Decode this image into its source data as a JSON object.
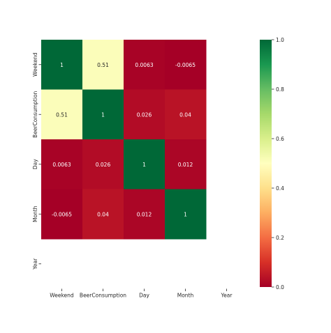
{
  "chart_data": {
    "type": "heatmap",
    "title": "",
    "xlabel": "",
    "ylabel": "",
    "rows": [
      "Weekend",
      "BeerConsumption",
      "Day",
      "Month",
      "Year"
    ],
    "columns": [
      "Weekend",
      "BeerConsumption",
      "Day",
      "Month",
      "Year"
    ],
    "values": [
      [
        1,
        0.51,
        0.0063,
        -0.0065,
        null
      ],
      [
        0.51,
        1,
        0.026,
        0.04,
        null
      ],
      [
        0.0063,
        0.026,
        1,
        0.012,
        null
      ],
      [
        -0.0065,
        0.04,
        0.012,
        1,
        null
      ],
      [
        null,
        null,
        null,
        null,
        null
      ]
    ],
    "labels": [
      [
        "1",
        "0.51",
        "0.0063",
        "-0.0065",
        ""
      ],
      [
        "0.51",
        "1",
        "0.026",
        "0.04",
        ""
      ],
      [
        "0.0063",
        "0.026",
        "1",
        "0.012",
        ""
      ],
      [
        "-0.0065",
        "0.04",
        "0.012",
        "1",
        ""
      ],
      [
        "",
        "",
        "",
        "",
        ""
      ]
    ],
    "colormap": "RdYlGn",
    "colorbar": {
      "range": [
        0.0,
        1.0
      ],
      "ticks": [
        0.0,
        0.2,
        0.4,
        0.6,
        0.8,
        1.0
      ],
      "tick_labels": [
        "0.0",
        "0.2",
        "0.4",
        "0.6",
        "0.8",
        "1.0"
      ]
    },
    "grid": false,
    "legend": "colorbar-right"
  }
}
